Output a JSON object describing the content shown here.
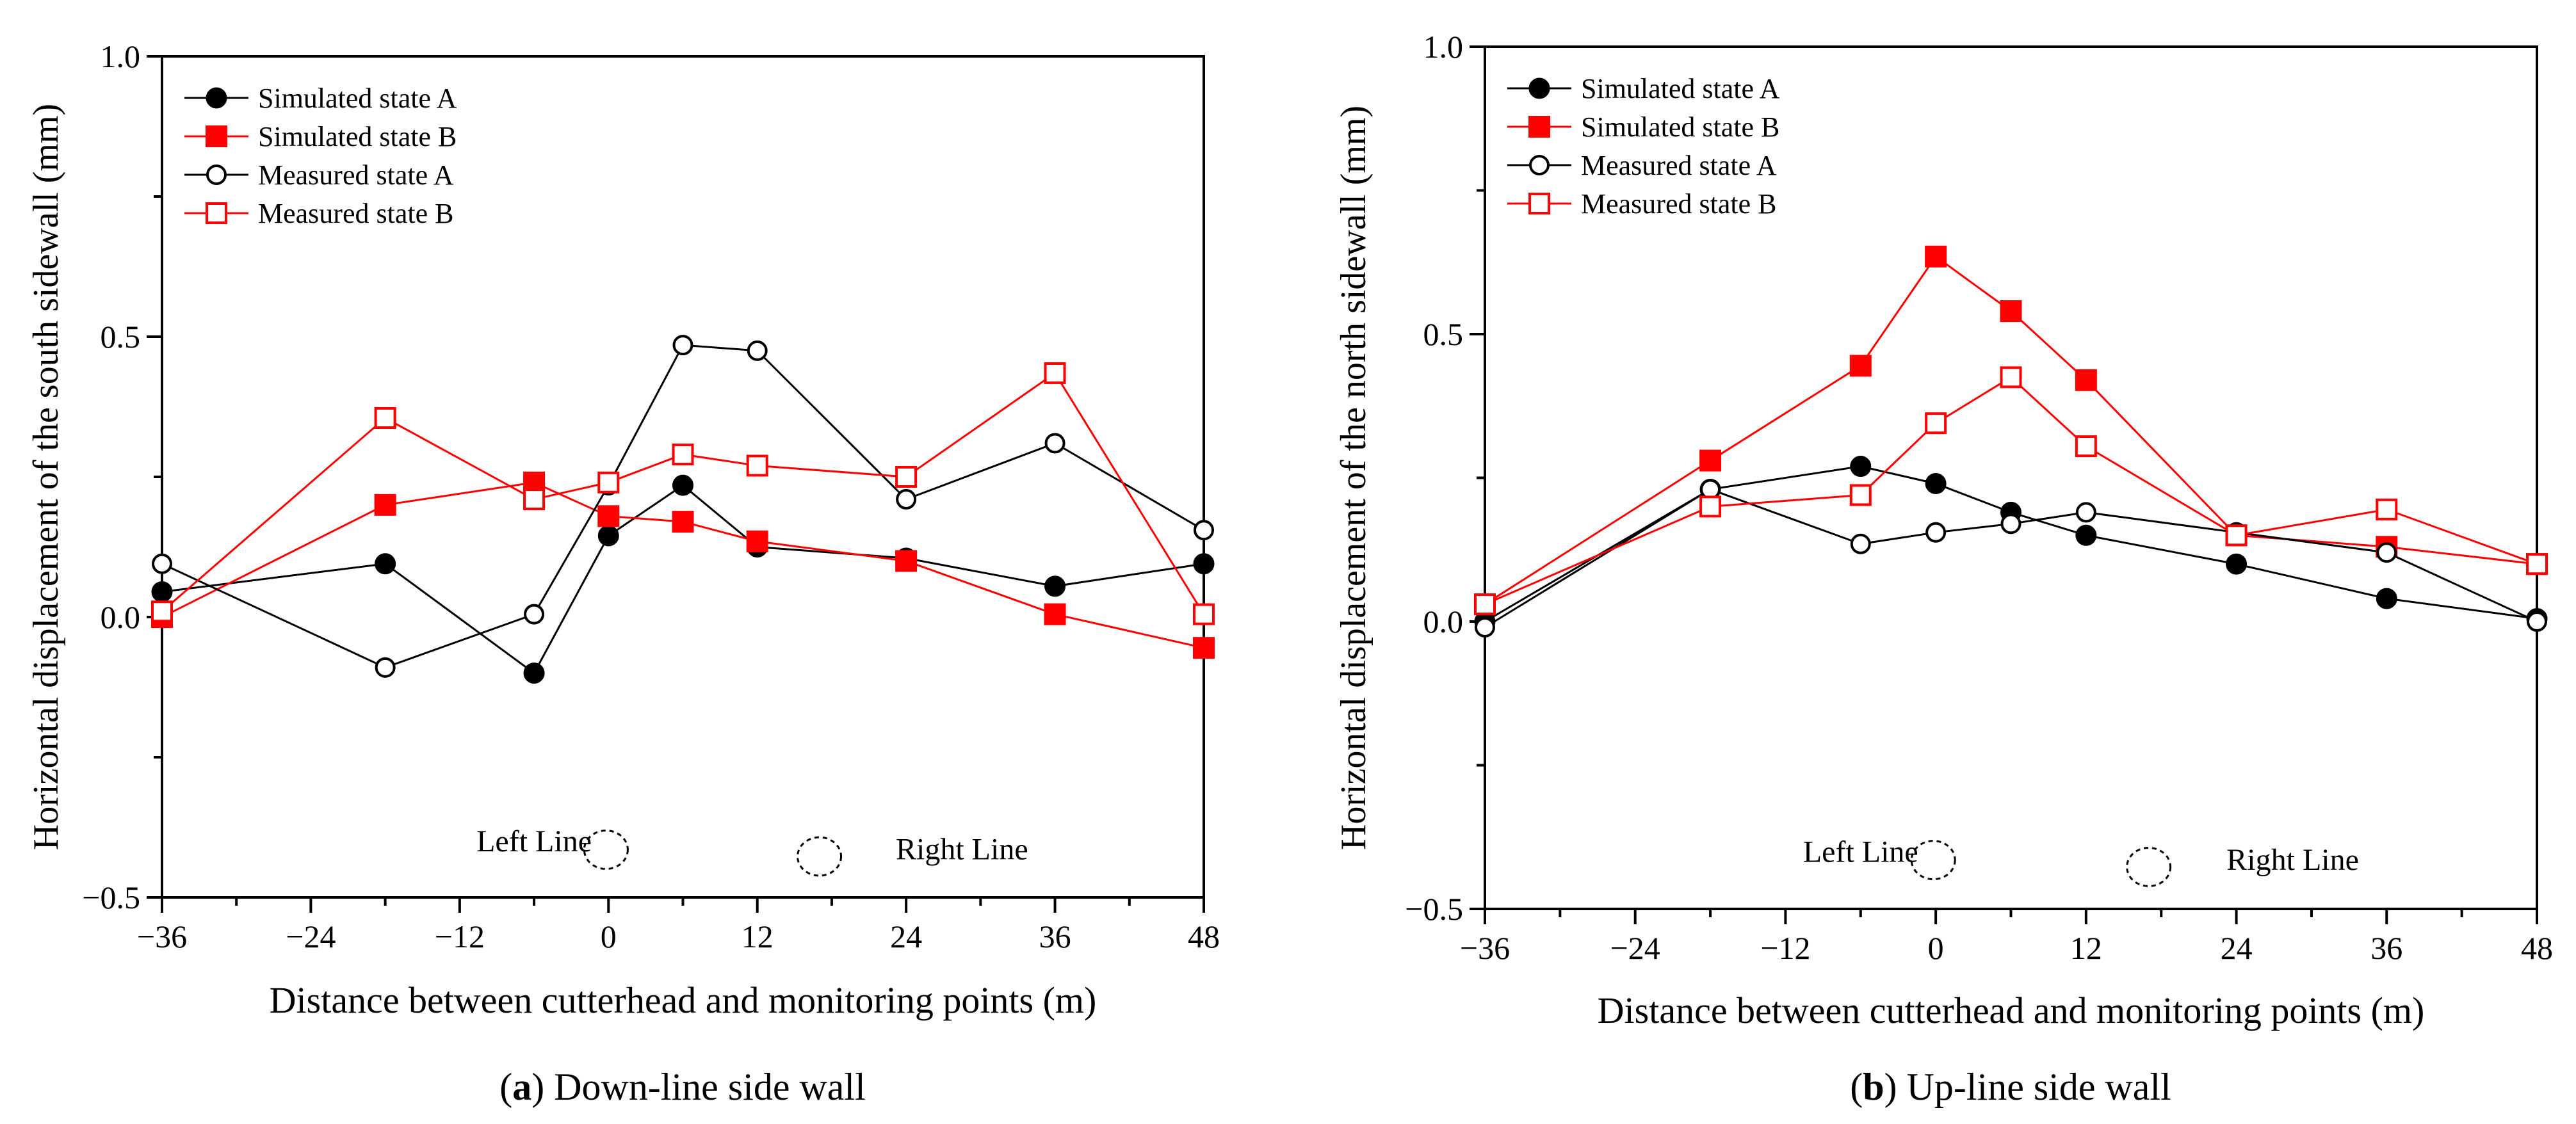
{
  "chart_data": [
    {
      "type": "line",
      "caption_letter": "a",
      "caption_text": " Down-line side wall",
      "xlabel": "Distance between cutterhead and monitoring points (m)",
      "ylabel": "Horizontal displacement of the south sidewall (mm)",
      "xlim": [
        -36,
        48
      ],
      "ylim": [
        -0.5,
        1.0
      ],
      "xticks": [
        -36,
        -24,
        -12,
        0,
        12,
        24,
        36,
        48
      ],
      "xtick_labels": [
        "−36",
        "−24",
        "−12",
        "0",
        "12",
        "24",
        "36",
        "48"
      ],
      "yticks": [
        -0.5,
        0.0,
        0.5,
        1.0
      ],
      "ytick_labels": [
        "−0.5",
        "0.0",
        "0.5",
        "1.0"
      ],
      "legend_position": "top-left",
      "series": [
        {
          "name": "Simulated state A",
          "color": "#000000",
          "marker": "filled-circle",
          "x": [
            -36,
            -18,
            -6,
            0,
            6,
            12,
            24,
            36,
            48
          ],
          "y": [
            0.045,
            0.095,
            -0.1,
            0.145,
            0.235,
            0.125,
            0.105,
            0.055,
            0.095
          ]
        },
        {
          "name": "Simulated state B",
          "color": "#ff0000",
          "marker": "filled-square",
          "x": [
            -36,
            -18,
            -6,
            0,
            6,
            12,
            24,
            36,
            48
          ],
          "y": [
            0.0,
            0.2,
            0.24,
            0.18,
            0.17,
            0.135,
            0.1,
            0.005,
            -0.055
          ]
        },
        {
          "name": "Measured state A",
          "color": "#000000",
          "marker": "open-circle",
          "x": [
            -36,
            -18,
            -6,
            0,
            6,
            12,
            24,
            36,
            48
          ],
          "y": [
            0.095,
            -0.09,
            0.005,
            0.235,
            0.485,
            0.475,
            0.21,
            0.31,
            0.155
          ]
        },
        {
          "name": "Measured state B",
          "color": "#ff0000",
          "marker": "open-square",
          "x": [
            -36,
            -18,
            -6,
            0,
            6,
            12,
            24,
            36,
            48
          ],
          "y": [
            0.01,
            0.355,
            0.21,
            0.24,
            0.29,
            0.27,
            0.25,
            0.435,
            0.005
          ]
        }
      ],
      "annotations": [
        {
          "text": "Left Line",
          "x": -6,
          "y": -0.418,
          "tunnel_x": -0.2,
          "tunnel_y": -0.415
        },
        {
          "text": "Right Line",
          "x": 28.5,
          "y": -0.432,
          "tunnel_x": 17,
          "tunnel_y": -0.427
        }
      ]
    },
    {
      "type": "line",
      "caption_letter": "b",
      "caption_text": " Up-line side wall",
      "xlabel": "Distance between cutterhead and monitoring points (m)",
      "ylabel": "Horizontal displacement of the north sidewall (mm)",
      "xlim": [
        -36,
        48
      ],
      "ylim": [
        -0.5,
        1.0
      ],
      "xticks": [
        -36,
        -24,
        -12,
        0,
        12,
        24,
        36,
        48
      ],
      "xtick_labels": [
        "−36",
        "−24",
        "−12",
        "0",
        "12",
        "24",
        "36",
        "48"
      ],
      "yticks": [
        -0.5,
        0.0,
        0.5,
        1.0
      ],
      "ytick_labels": [
        "−0.5",
        "0.0",
        "0.5",
        "1.0"
      ],
      "legend_position": "top-left",
      "series": [
        {
          "name": "Simulated state A",
          "color": "#000000",
          "marker": "filled-circle",
          "x": [
            -36,
            -18,
            -6,
            0,
            6,
            12,
            24,
            36,
            48
          ],
          "y": [
            0.0,
            0.23,
            0.27,
            0.24,
            0.19,
            0.15,
            0.1,
            0.04,
            0.005
          ]
        },
        {
          "name": "Simulated state B",
          "color": "#ff0000",
          "marker": "filled-square",
          "x": [
            -36,
            -18,
            -6,
            0,
            6,
            12,
            24,
            36,
            48
          ],
          "y": [
            0.03,
            0.28,
            0.445,
            0.635,
            0.54,
            0.42,
            0.15,
            0.13,
            0.1
          ]
        },
        {
          "name": "Measured state A",
          "color": "#000000",
          "marker": "open-circle",
          "x": [
            -36,
            -18,
            -6,
            0,
            6,
            12,
            24,
            36,
            48
          ],
          "y": [
            -0.01,
            0.23,
            0.135,
            0.155,
            0.17,
            0.19,
            0.155,
            0.12,
            0.0
          ]
        },
        {
          "name": "Measured state B",
          "color": "#ff0000",
          "marker": "open-square",
          "x": [
            -36,
            -18,
            -6,
            0,
            6,
            12,
            24,
            36,
            48
          ],
          "y": [
            0.03,
            0.2,
            0.22,
            0.345,
            0.425,
            0.305,
            0.15,
            0.195,
            0.1
          ]
        }
      ],
      "annotations": [
        {
          "text": "Left Line",
          "x": -6,
          "y": -0.418,
          "tunnel_x": -0.2,
          "tunnel_y": -0.415
        },
        {
          "text": "Right Line",
          "x": 28.5,
          "y": -0.432,
          "tunnel_x": 17,
          "tunnel_y": -0.427
        }
      ]
    }
  ]
}
